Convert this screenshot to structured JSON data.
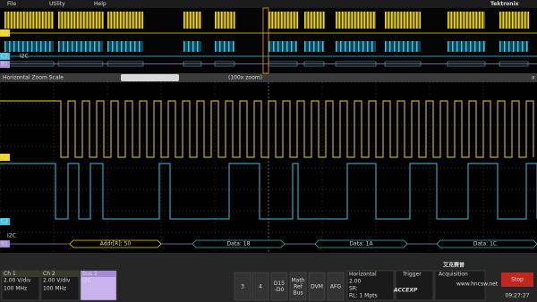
{
  "menu": [
    "File",
    "Utility",
    "Help"
  ],
  "brand": "Tektronix",
  "overview": {
    "channels": [
      "C1",
      "C2",
      "B1"
    ],
    "bus_label": "I2C"
  },
  "zoom_bar": {
    "title": "Horizontal Zoom Scale",
    "scale": "20.0 µs/div",
    "zoom": "(100x zoom)",
    "close": "x"
  },
  "waveform": {
    "channels": [
      "C1",
      "C2",
      "B1"
    ],
    "bus_label": "I2C",
    "bus_packets": [
      "Addr[R]: 50",
      "Data: 18",
      "Data: 1A",
      "Data: 1C"
    ]
  },
  "badges": [
    {
      "title": "Ch 1",
      "lines": [
        "2.00 V/div",
        "100 MHz"
      ]
    },
    {
      "title": "Ch 2",
      "lines": [
        "2.00 V/div",
        "100 MHz"
      ]
    },
    {
      "title": "Bus 1",
      "lines": [
        "I2C"
      ]
    }
  ],
  "buttons": [
    [
      "3"
    ],
    [
      "4"
    ],
    [
      "D15",
      "-D0"
    ],
    [
      "Math",
      "Ref",
      "Bus"
    ],
    [
      "DVM"
    ],
    [
      "AFG"
    ]
  ],
  "horizontal": {
    "title": "Horizontal",
    "lines": [
      "2.00",
      "SR:",
      "RL: 1 Mpts"
    ]
  },
  "trigger": "Trigger",
  "acquisition": "Acquisition",
  "stop": "Stop",
  "time": "09:27:27",
  "watermark": {
    "cn": "艾克赛普",
    "en": "ACCEXP",
    "url": "www.hncsw.net"
  }
}
